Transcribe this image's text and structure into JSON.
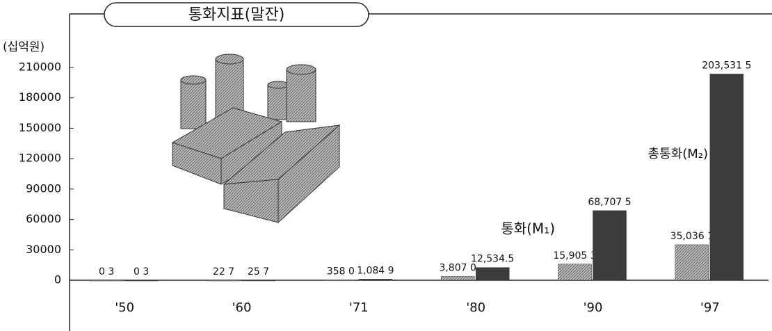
{
  "chart_data": {
    "type": "bar",
    "title": "통화지표(말잔)",
    "y_label": "(십억원)",
    "categories": [
      "'50",
      "'60",
      "'71",
      "'80",
      "'90",
      "'97"
    ],
    "series": [
      {
        "name": "통화(M₁)",
        "color": "#a8a8a8",
        "values": [
          0.3,
          22.7,
          358.0,
          3807.0,
          15905.3,
          35036.1
        ],
        "value_labels": [
          "0 3",
          "22 7",
          "358 0",
          "3,807 0",
          "15,905 3",
          "35,036 1"
        ]
      },
      {
        "name": "총통화(M₂)",
        "color": "#3c3c3c",
        "values": [
          0.3,
          25.7,
          1084.9,
          12534.5,
          68707.5,
          203531.5
        ],
        "value_labels": [
          "0 3",
          "25 7",
          "1,084 9",
          "12,534.5",
          "68,707 5",
          "203,531 5"
        ]
      }
    ],
    "ylim": [
      0,
      210000
    ],
    "yticks": [
      0,
      30000,
      60000,
      90000,
      120000,
      150000,
      180000,
      210000
    ]
  }
}
